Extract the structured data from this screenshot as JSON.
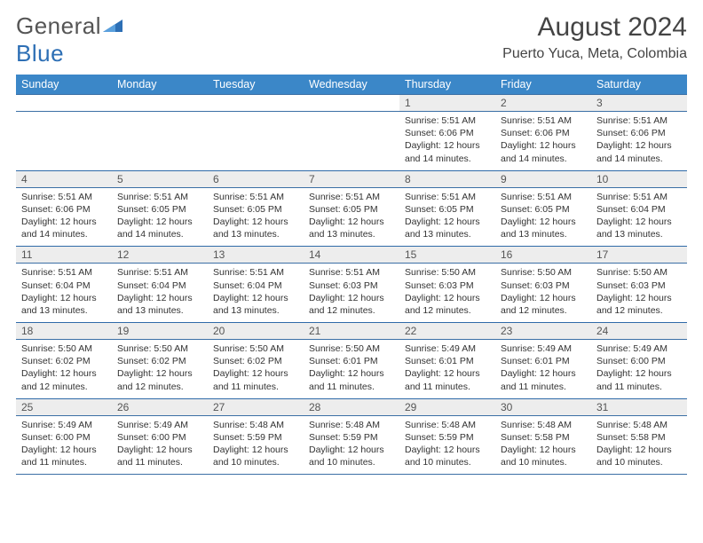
{
  "brand": {
    "name_a": "General",
    "name_b": "Blue"
  },
  "title": "August 2024",
  "location": "Puerto Yuca, Meta, Colombia",
  "colors": {
    "header_bg": "#3b87c8",
    "daynum_bg": "#ededed",
    "rule": "#2f6aa8",
    "text": "#333333"
  },
  "weekdays": [
    "Sunday",
    "Monday",
    "Tuesday",
    "Wednesday",
    "Thursday",
    "Friday",
    "Saturday"
  ],
  "weeks": [
    {
      "nums": [
        "",
        "",
        "",
        "",
        "1",
        "2",
        "3"
      ],
      "cells": [
        null,
        null,
        null,
        null,
        {
          "sunrise": "5:51 AM",
          "sunset": "6:06 PM",
          "daylight": "12 hours and 14 minutes."
        },
        {
          "sunrise": "5:51 AM",
          "sunset": "6:06 PM",
          "daylight": "12 hours and 14 minutes."
        },
        {
          "sunrise": "5:51 AM",
          "sunset": "6:06 PM",
          "daylight": "12 hours and 14 minutes."
        }
      ]
    },
    {
      "nums": [
        "4",
        "5",
        "6",
        "7",
        "8",
        "9",
        "10"
      ],
      "cells": [
        {
          "sunrise": "5:51 AM",
          "sunset": "6:06 PM",
          "daylight": "12 hours and 14 minutes."
        },
        {
          "sunrise": "5:51 AM",
          "sunset": "6:05 PM",
          "daylight": "12 hours and 14 minutes."
        },
        {
          "sunrise": "5:51 AM",
          "sunset": "6:05 PM",
          "daylight": "12 hours and 13 minutes."
        },
        {
          "sunrise": "5:51 AM",
          "sunset": "6:05 PM",
          "daylight": "12 hours and 13 minutes."
        },
        {
          "sunrise": "5:51 AM",
          "sunset": "6:05 PM",
          "daylight": "12 hours and 13 minutes."
        },
        {
          "sunrise": "5:51 AM",
          "sunset": "6:05 PM",
          "daylight": "12 hours and 13 minutes."
        },
        {
          "sunrise": "5:51 AM",
          "sunset": "6:04 PM",
          "daylight": "12 hours and 13 minutes."
        }
      ]
    },
    {
      "nums": [
        "11",
        "12",
        "13",
        "14",
        "15",
        "16",
        "17"
      ],
      "cells": [
        {
          "sunrise": "5:51 AM",
          "sunset": "6:04 PM",
          "daylight": "12 hours and 13 minutes."
        },
        {
          "sunrise": "5:51 AM",
          "sunset": "6:04 PM",
          "daylight": "12 hours and 13 minutes."
        },
        {
          "sunrise": "5:51 AM",
          "sunset": "6:04 PM",
          "daylight": "12 hours and 13 minutes."
        },
        {
          "sunrise": "5:51 AM",
          "sunset": "6:03 PM",
          "daylight": "12 hours and 12 minutes."
        },
        {
          "sunrise": "5:50 AM",
          "sunset": "6:03 PM",
          "daylight": "12 hours and 12 minutes."
        },
        {
          "sunrise": "5:50 AM",
          "sunset": "6:03 PM",
          "daylight": "12 hours and 12 minutes."
        },
        {
          "sunrise": "5:50 AM",
          "sunset": "6:03 PM",
          "daylight": "12 hours and 12 minutes."
        }
      ]
    },
    {
      "nums": [
        "18",
        "19",
        "20",
        "21",
        "22",
        "23",
        "24"
      ],
      "cells": [
        {
          "sunrise": "5:50 AM",
          "sunset": "6:02 PM",
          "daylight": "12 hours and 12 minutes."
        },
        {
          "sunrise": "5:50 AM",
          "sunset": "6:02 PM",
          "daylight": "12 hours and 12 minutes."
        },
        {
          "sunrise": "5:50 AM",
          "sunset": "6:02 PM",
          "daylight": "12 hours and 11 minutes."
        },
        {
          "sunrise": "5:50 AM",
          "sunset": "6:01 PM",
          "daylight": "12 hours and 11 minutes."
        },
        {
          "sunrise": "5:49 AM",
          "sunset": "6:01 PM",
          "daylight": "12 hours and 11 minutes."
        },
        {
          "sunrise": "5:49 AM",
          "sunset": "6:01 PM",
          "daylight": "12 hours and 11 minutes."
        },
        {
          "sunrise": "5:49 AM",
          "sunset": "6:00 PM",
          "daylight": "12 hours and 11 minutes."
        }
      ]
    },
    {
      "nums": [
        "25",
        "26",
        "27",
        "28",
        "29",
        "30",
        "31"
      ],
      "cells": [
        {
          "sunrise": "5:49 AM",
          "sunset": "6:00 PM",
          "daylight": "12 hours and 11 minutes."
        },
        {
          "sunrise": "5:49 AM",
          "sunset": "6:00 PM",
          "daylight": "12 hours and 11 minutes."
        },
        {
          "sunrise": "5:48 AM",
          "sunset": "5:59 PM",
          "daylight": "12 hours and 10 minutes."
        },
        {
          "sunrise": "5:48 AM",
          "sunset": "5:59 PM",
          "daylight": "12 hours and 10 minutes."
        },
        {
          "sunrise": "5:48 AM",
          "sunset": "5:59 PM",
          "daylight": "12 hours and 10 minutes."
        },
        {
          "sunrise": "5:48 AM",
          "sunset": "5:58 PM",
          "daylight": "12 hours and 10 minutes."
        },
        {
          "sunrise": "5:48 AM",
          "sunset": "5:58 PM",
          "daylight": "12 hours and 10 minutes."
        }
      ]
    }
  ],
  "labels": {
    "sunrise": "Sunrise: ",
    "sunset": "Sunset: ",
    "daylight": "Daylight: "
  }
}
